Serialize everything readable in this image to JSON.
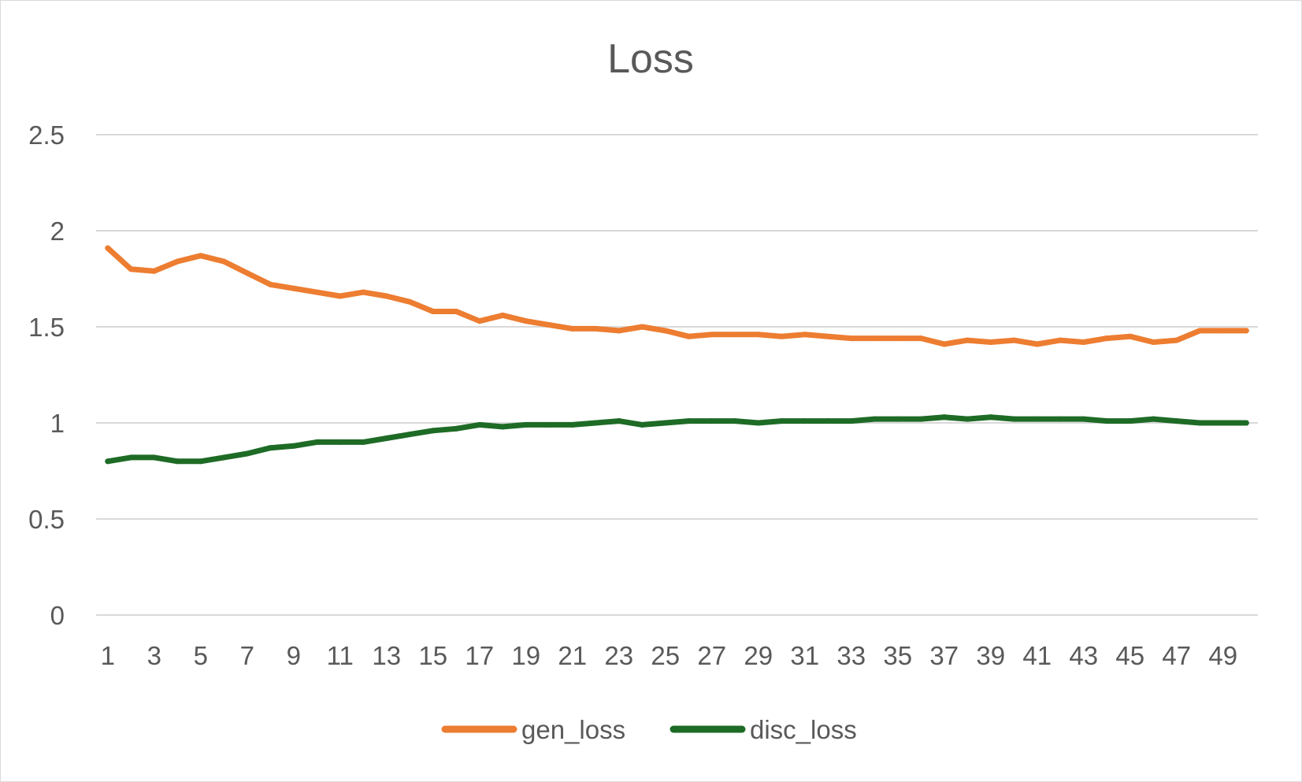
{
  "chart_data": {
    "type": "line",
    "title": "Loss",
    "xlabel": "",
    "ylabel": "",
    "ylim": [
      0,
      2.5
    ],
    "yticks": [
      0,
      0.5,
      1,
      1.5,
      2,
      2.5
    ],
    "ytick_labels": [
      "0",
      "0.5",
      "1",
      "1.5",
      "2",
      "2.5"
    ],
    "x": [
      1,
      2,
      3,
      4,
      5,
      6,
      7,
      8,
      9,
      10,
      11,
      12,
      13,
      14,
      15,
      16,
      17,
      18,
      19,
      20,
      21,
      22,
      23,
      24,
      25,
      26,
      27,
      28,
      29,
      30,
      31,
      32,
      33,
      34,
      35,
      36,
      37,
      38,
      39,
      40,
      41,
      42,
      43,
      44,
      45,
      46,
      47,
      48,
      49,
      50
    ],
    "xtick_labels": [
      "1",
      "3",
      "5",
      "7",
      "9",
      "11",
      "13",
      "15",
      "17",
      "19",
      "21",
      "23",
      "25",
      "27",
      "29",
      "31",
      "33",
      "35",
      "37",
      "39",
      "41",
      "43",
      "45",
      "47",
      "49"
    ],
    "grid": true,
    "legend_position": "bottom",
    "series": [
      {
        "name": "gen_loss",
        "color": "#ED7D31",
        "values": [
          1.91,
          1.8,
          1.79,
          1.84,
          1.87,
          1.84,
          1.78,
          1.72,
          1.7,
          1.68,
          1.66,
          1.68,
          1.66,
          1.63,
          1.58,
          1.58,
          1.53,
          1.56,
          1.53,
          1.51,
          1.49,
          1.49,
          1.48,
          1.5,
          1.48,
          1.45,
          1.46,
          1.46,
          1.46,
          1.45,
          1.46,
          1.45,
          1.44,
          1.44,
          1.44,
          1.44,
          1.41,
          1.43,
          1.42,
          1.43,
          1.41,
          1.43,
          1.42,
          1.44,
          1.45,
          1.42,
          1.43,
          1.48,
          1.48,
          1.48
        ]
      },
      {
        "name": "disc_loss",
        "color": "#1E6B26",
        "values": [
          0.8,
          0.82,
          0.82,
          0.8,
          0.8,
          0.82,
          0.84,
          0.87,
          0.88,
          0.9,
          0.9,
          0.9,
          0.92,
          0.94,
          0.96,
          0.97,
          0.99,
          0.98,
          0.99,
          0.99,
          0.99,
          1.0,
          1.01,
          0.99,
          1.0,
          1.01,
          1.01,
          1.01,
          1.0,
          1.01,
          1.01,
          1.01,
          1.01,
          1.02,
          1.02,
          1.02,
          1.03,
          1.02,
          1.03,
          1.02,
          1.02,
          1.02,
          1.02,
          1.01,
          1.01,
          1.02,
          1.01,
          1.0,
          1.0,
          1.0
        ]
      }
    ]
  }
}
